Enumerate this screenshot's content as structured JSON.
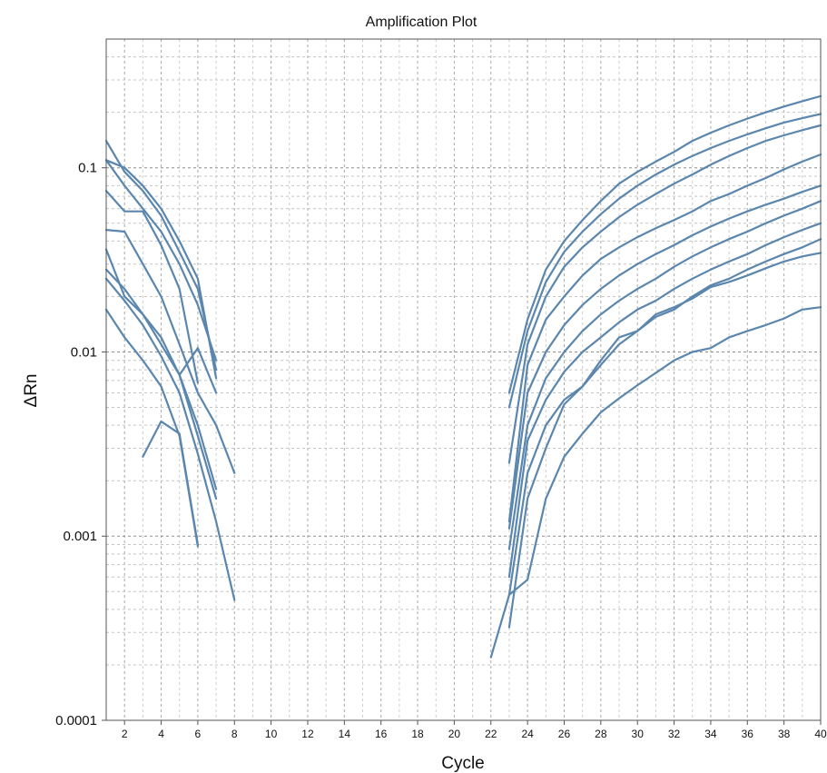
{
  "chart_data": {
    "type": "line",
    "title": "Amplification Plot",
    "xlabel": "Cycle",
    "ylabel": "ΔRn",
    "xlim": [
      1,
      40
    ],
    "ylim": [
      0.0001,
      0.5
    ],
    "yscale": "log",
    "grid": true,
    "legend": "none",
    "line_color": "#5b86ad",
    "x_ticks": [
      2,
      4,
      6,
      8,
      10,
      12,
      14,
      16,
      18,
      20,
      22,
      24,
      26,
      28,
      30,
      32,
      34,
      36,
      38,
      40
    ],
    "x_tick_labels": [
      "2",
      "4",
      "6",
      "8",
      "10",
      "12",
      "14",
      "16",
      "18",
      "20",
      "22",
      "24",
      "26",
      "28",
      "30",
      "32",
      "34",
      "36",
      "38",
      "40"
    ],
    "y_ticks": [
      0.0001,
      0.001,
      0.01,
      0.1
    ],
    "y_tick_labels": [
      "0.0001",
      "0.001",
      "0.01",
      "0.1"
    ],
    "series": [
      {
        "x": [
          1,
          2,
          3,
          4,
          5,
          6,
          7
        ],
        "y": [
          0.11,
          0.1,
          0.08,
          0.06,
          0.04,
          0.025,
          0.0072
        ]
      },
      {
        "x": [
          1,
          2,
          3,
          4,
          5,
          6,
          7
        ],
        "y": [
          0.14,
          0.095,
          0.075,
          0.055,
          0.035,
          0.022,
          0.008
        ]
      },
      {
        "x": [
          1,
          2,
          3,
          4,
          5,
          6,
          7
        ],
        "y": [
          0.11,
          0.08,
          0.06,
          0.045,
          0.03,
          0.018,
          0.009
        ]
      },
      {
        "x": [
          1,
          2,
          3,
          4,
          5,
          6
        ],
        "y": [
          0.075,
          0.058,
          0.058,
          0.038,
          0.022,
          0.0068
        ]
      },
      {
        "x": [
          1,
          2,
          3,
          4,
          5,
          6,
          7,
          8
        ],
        "y": [
          0.046,
          0.045,
          0.03,
          0.02,
          0.011,
          0.006,
          0.004,
          0.0022
        ]
      },
      {
        "x": [
          1,
          2,
          3,
          4,
          5,
          6,
          7
        ],
        "y": [
          0.036,
          0.02,
          0.016,
          0.012,
          0.0075,
          0.004,
          0.0018
        ]
      },
      {
        "x": [
          1,
          2,
          3,
          4,
          5,
          6,
          7
        ],
        "y": [
          0.028,
          0.022,
          0.016,
          0.011,
          0.0075,
          0.0035,
          0.0016
        ]
      },
      {
        "x": [
          1,
          2,
          3,
          4,
          5,
          6,
          7,
          8
        ],
        "y": [
          0.025,
          0.019,
          0.014,
          0.0095,
          0.006,
          0.0028,
          0.0012,
          0.00045
        ]
      },
      {
        "x": [
          1,
          2,
          3,
          4,
          5,
          6
        ],
        "y": [
          0.017,
          0.012,
          0.009,
          0.0065,
          0.0035,
          0.00088
        ]
      },
      {
        "x": [
          5,
          6,
          7
        ],
        "y": [
          0.0075,
          0.0105,
          0.006
        ]
      },
      {
        "x": [
          3,
          4,
          5,
          6
        ],
        "y": [
          0.0027,
          0.0042,
          0.0036,
          0.0009
        ]
      },
      {
        "x": [
          23,
          24,
          25,
          26,
          27,
          28,
          29,
          30,
          31,
          32,
          33,
          34,
          35,
          36,
          37,
          38,
          39,
          40
        ],
        "y": [
          0.006,
          0.015,
          0.028,
          0.04,
          0.052,
          0.066,
          0.082,
          0.095,
          0.108,
          0.122,
          0.14,
          0.155,
          0.17,
          0.185,
          0.2,
          0.215,
          0.23,
          0.245
        ]
      },
      {
        "x": [
          23,
          24,
          25,
          26,
          27,
          28,
          29,
          30,
          31,
          32,
          33,
          34,
          35,
          36,
          37,
          38,
          39,
          40
        ],
        "y": [
          0.005,
          0.013,
          0.024,
          0.035,
          0.045,
          0.056,
          0.068,
          0.08,
          0.092,
          0.104,
          0.116,
          0.128,
          0.14,
          0.152,
          0.164,
          0.176,
          0.186,
          0.196
        ]
      },
      {
        "x": [
          23,
          24,
          25,
          26,
          27,
          28,
          29,
          30,
          31,
          32,
          33,
          34,
          35,
          36,
          37,
          38,
          39,
          40
        ],
        "y": [
          0.0025,
          0.011,
          0.02,
          0.029,
          0.037,
          0.045,
          0.054,
          0.063,
          0.072,
          0.082,
          0.092,
          0.104,
          0.116,
          0.128,
          0.14,
          0.15,
          0.16,
          0.17
        ]
      },
      {
        "x": [
          23,
          24,
          25,
          26,
          27,
          28,
          29,
          30,
          31,
          32,
          33,
          34,
          35,
          36,
          37,
          38,
          39,
          40
        ],
        "y": [
          0.0012,
          0.0085,
          0.015,
          0.02,
          0.026,
          0.032,
          0.037,
          0.042,
          0.047,
          0.052,
          0.058,
          0.066,
          0.072,
          0.08,
          0.088,
          0.098,
          0.108,
          0.118
        ]
      },
      {
        "x": [
          23,
          24,
          25,
          26,
          27,
          28,
          29,
          30,
          31,
          32,
          33,
          34,
          35,
          36,
          37,
          38,
          39,
          40
        ],
        "y": [
          0.0011,
          0.006,
          0.01,
          0.014,
          0.018,
          0.022,
          0.026,
          0.03,
          0.034,
          0.038,
          0.043,
          0.048,
          0.053,
          0.058,
          0.063,
          0.068,
          0.074,
          0.08
        ]
      },
      {
        "x": [
          23,
          24,
          25,
          26,
          27,
          28,
          29,
          30,
          31,
          32,
          33,
          34,
          35,
          36,
          37,
          38,
          39,
          40
        ],
        "y": [
          0.00085,
          0.004,
          0.0072,
          0.01,
          0.013,
          0.016,
          0.019,
          0.022,
          0.025,
          0.029,
          0.033,
          0.037,
          0.041,
          0.045,
          0.05,
          0.055,
          0.06,
          0.066
        ]
      },
      {
        "x": [
          23,
          24,
          25,
          26,
          27,
          28,
          29,
          30,
          31,
          32,
          33,
          34,
          35,
          36,
          37,
          38,
          39,
          40
        ],
        "y": [
          0.0006,
          0.0033,
          0.0055,
          0.0078,
          0.01,
          0.012,
          0.0145,
          0.017,
          0.019,
          0.022,
          0.025,
          0.028,
          0.031,
          0.034,
          0.038,
          0.042,
          0.046,
          0.05
        ]
      },
      {
        "x": [
          23,
          24,
          25,
          26,
          27,
          28,
          29,
          30,
          31,
          32,
          33,
          34,
          35,
          36,
          37,
          38,
          39,
          40
        ],
        "y": [
          0.00048,
          0.0022,
          0.004,
          0.0055,
          0.0065,
          0.0085,
          0.011,
          0.013,
          0.0155,
          0.017,
          0.02,
          0.023,
          0.025,
          0.028,
          0.031,
          0.034,
          0.037,
          0.041
        ]
      },
      {
        "x": [
          23,
          24,
          25,
          26,
          27,
          28,
          29,
          30,
          31,
          32,
          33,
          34,
          35,
          36,
          37,
          38,
          39,
          40
        ],
        "y": [
          0.00032,
          0.0016,
          0.003,
          0.0052,
          0.0065,
          0.009,
          0.012,
          0.013,
          0.016,
          0.0175,
          0.0195,
          0.0225,
          0.024,
          0.026,
          0.0285,
          0.031,
          0.033,
          0.0345
        ]
      },
      {
        "x": [
          22,
          23,
          24,
          25,
          26,
          27,
          28,
          29,
          30,
          31,
          32,
          33,
          34,
          35,
          36,
          37,
          38,
          39,
          40
        ],
        "y": [
          0.00022,
          0.00048,
          0.00058,
          0.0016,
          0.0027,
          0.0036,
          0.0047,
          0.0056,
          0.0066,
          0.0077,
          0.009,
          0.01,
          0.0105,
          0.012,
          0.013,
          0.014,
          0.0152,
          0.017,
          0.0175
        ]
      }
    ]
  }
}
